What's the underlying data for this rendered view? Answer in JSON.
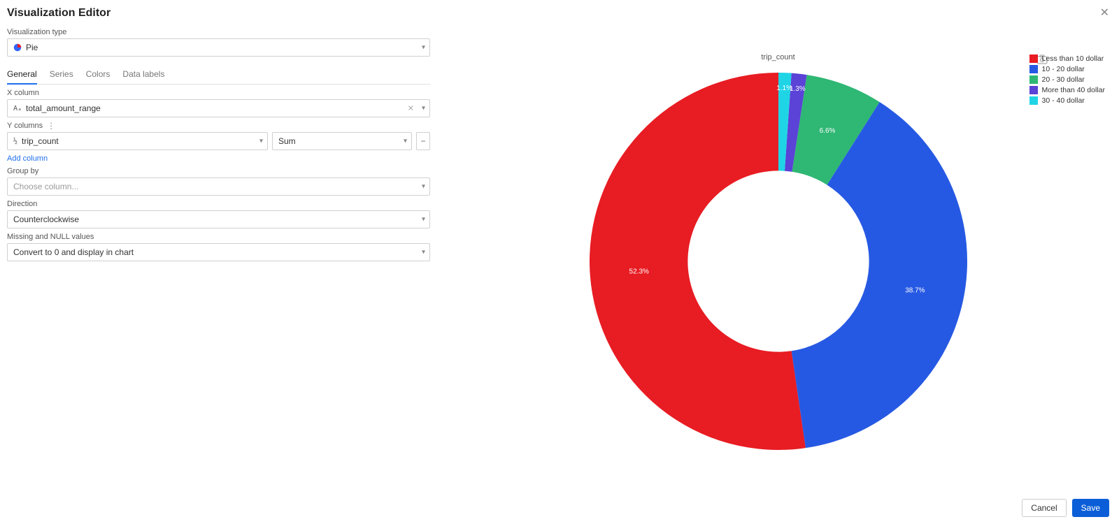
{
  "header": {
    "title": "Visualization Editor"
  },
  "viz_type": {
    "label": "Visualization type",
    "value": "Pie",
    "icon_colors": [
      "#3366ff",
      "#e81c23"
    ]
  },
  "tabs": [
    {
      "label": "General",
      "active": true
    },
    {
      "label": "Series",
      "active": false
    },
    {
      "label": "Colors",
      "active": false
    },
    {
      "label": "Data labels",
      "active": false
    }
  ],
  "x_column": {
    "label": "X column",
    "value": "total_amount_range",
    "icon": "Aₐ"
  },
  "y_columns": {
    "label": "Y columns",
    "rows": [
      {
        "value": "trip_count",
        "icon": "½",
        "agg": "Sum"
      }
    ],
    "add_label": "Add column"
  },
  "group_by": {
    "label": "Group by",
    "placeholder": "Choose column..."
  },
  "direction": {
    "label": "Direction",
    "value": "Counterclockwise"
  },
  "missing": {
    "label": "Missing and NULL values",
    "value": "Convert to 0 and display in chart"
  },
  "footer": {
    "cancel": "Cancel",
    "save": "Save"
  },
  "chart": {
    "type": "pie",
    "title": "trip_count",
    "donut_inner_ratio": 0.48,
    "outer_radius": 270,
    "direction": "counterclockwise",
    "background_color": "#ffffff",
    "label_color": "#ffffff",
    "label_fontsize": 10,
    "slices": [
      {
        "name": "Less than 10 dollar",
        "value": 0.523,
        "color": "#e81c23",
        "label": "52.3%"
      },
      {
        "name": "10 - 20 dollar",
        "value": 0.387,
        "color": "#2659e3",
        "label": "38.7%"
      },
      {
        "name": "20 - 30 dollar",
        "value": 0.066,
        "color": "#2fb774",
        "label": "6.6%"
      },
      {
        "name": "More than 40 dollar",
        "value": 0.013,
        "color": "#5a43d6",
        "label": "1.3%"
      },
      {
        "name": "30 - 40 dollar",
        "value": 0.011,
        "color": "#1fd4e5",
        "label": "1.1%"
      }
    ],
    "legend": {
      "position": "top-right",
      "fontsize": 10.5,
      "swatch_size": 12
    }
  }
}
